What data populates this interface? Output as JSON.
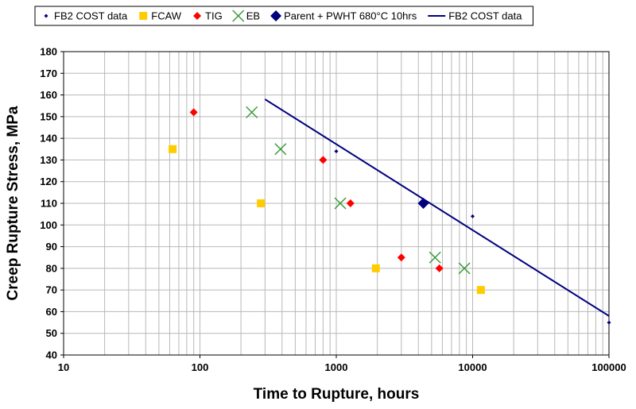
{
  "chart_data": {
    "type": "scatter",
    "xscale": "log",
    "xlim": [
      10,
      100000
    ],
    "ylim": [
      40,
      180
    ],
    "xlabel": "Time to Rupture, hours",
    "ylabel": "Creep Rupture Stress, MPa",
    "xticks": [
      10,
      100,
      1000,
      10000,
      100000
    ],
    "xtick_labels": [
      "10",
      "100",
      "1000",
      "10000",
      "100000"
    ],
    "yticks": [
      40,
      50,
      60,
      70,
      80,
      90,
      100,
      110,
      120,
      130,
      140,
      150,
      160,
      170,
      180
    ],
    "grid": true,
    "legend_position": "top",
    "series": [
      {
        "name": "FB2 COST data",
        "kind": "marker",
        "marker": "small-diamond",
        "color": "#00007f",
        "points": [
          [
            1000,
            134
          ],
          [
            10000,
            104
          ],
          [
            100000,
            55
          ]
        ]
      },
      {
        "name": "FCAW",
        "kind": "marker",
        "marker": "square",
        "color": "#ffcc00",
        "points": [
          [
            63,
            135
          ],
          [
            280,
            110
          ],
          [
            1950,
            80
          ],
          [
            11500,
            70
          ]
        ]
      },
      {
        "name": "TIG",
        "kind": "marker",
        "marker": "diamond",
        "color": "#ff0000",
        "points": [
          [
            90,
            152
          ],
          [
            800,
            130
          ],
          [
            1270,
            110
          ],
          [
            3000,
            85
          ],
          [
            5700,
            80
          ]
        ]
      },
      {
        "name": "EB",
        "kind": "marker",
        "marker": "x",
        "color": "#339933",
        "points": [
          [
            240,
            152
          ],
          [
            390,
            135
          ],
          [
            1070,
            110
          ],
          [
            5300,
            85
          ],
          [
            8700,
            80
          ]
        ]
      },
      {
        "name": "Parent + PWHT 680°C 10hrs",
        "kind": "marker",
        "marker": "big-diamond",
        "color": "#00007f",
        "points": [
          [
            4350,
            110
          ]
        ]
      },
      {
        "name": "FB2 COST data",
        "kind": "line",
        "color": "#00007f",
        "points": [
          [
            300,
            158
          ],
          [
            100000,
            58
          ]
        ]
      }
    ]
  }
}
